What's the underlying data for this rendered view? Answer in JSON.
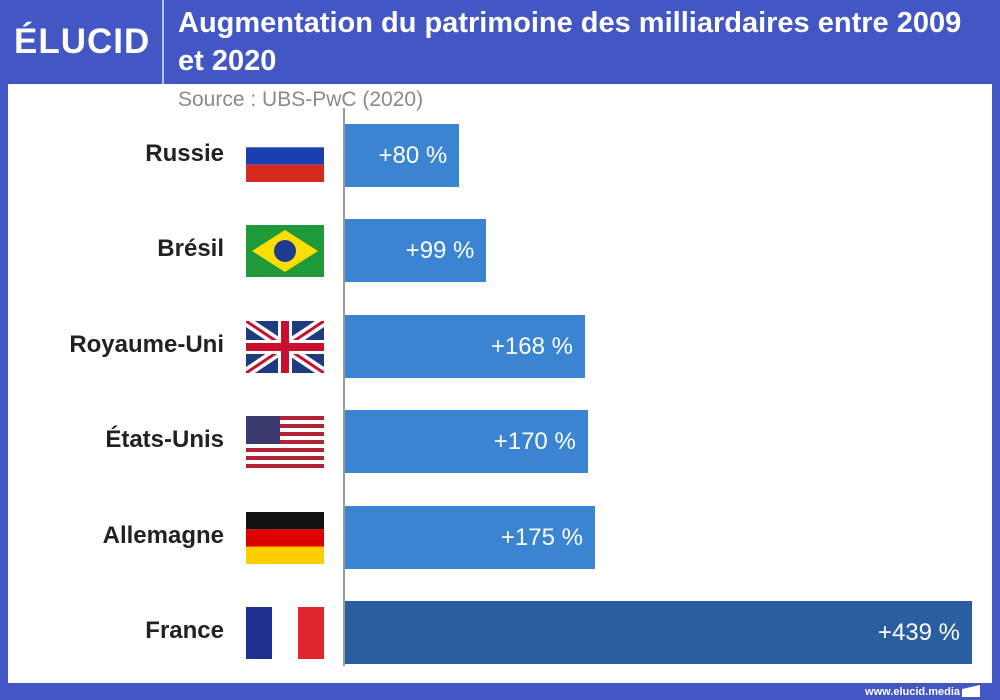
{
  "header": {
    "logo": "ÉLUCID",
    "title": "Augmentation du patrimoine des milliardaires entre 2009 et 2020",
    "source": "Source : UBS-PwC (2020)"
  },
  "footer": {
    "url": "www.elucid.media"
  },
  "colors": {
    "bar": "#3a84d2",
    "highlight": "#2a5e9e",
    "frame": "#4256c4"
  },
  "chart_data": {
    "type": "bar",
    "orientation": "horizontal",
    "title": "Augmentation du patrimoine des milliardaires entre 2009 et 2020",
    "categories": [
      "Russie",
      "Brésil",
      "Royaume-Uni",
      "États-Unis",
      "Allemagne",
      "France"
    ],
    "values": [
      80,
      99,
      168,
      170,
      175,
      439
    ],
    "data_labels": [
      "+80 %",
      "+99 %",
      "+168 %",
      "+170 %",
      "+175 %",
      "+439 %"
    ],
    "flags": [
      "russia-flag",
      "brazil-flag",
      "uk-flag",
      "usa-flag",
      "germany-flag",
      "france-flag"
    ],
    "xlim": [
      0,
      439
    ],
    "unit": "%"
  }
}
